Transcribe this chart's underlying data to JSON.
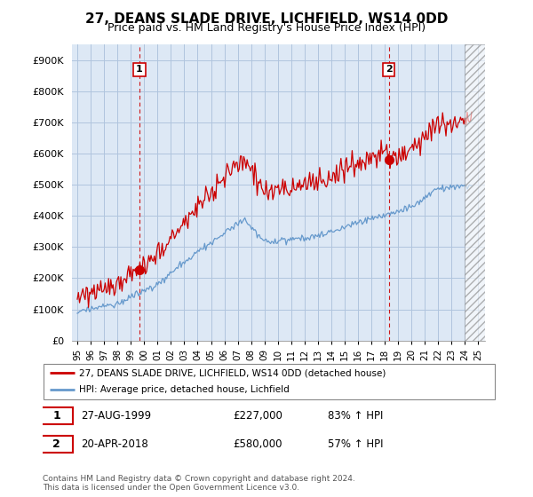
{
  "title": "27, DEANS SLADE DRIVE, LICHFIELD, WS14 0DD",
  "subtitle": "Price paid vs. HM Land Registry's House Price Index (HPI)",
  "property_label": "27, DEANS SLADE DRIVE, LICHFIELD, WS14 0DD (detached house)",
  "hpi_label": "HPI: Average price, detached house, Lichfield",
  "transaction1_label": "1",
  "transaction1_date": "27-AUG-1999",
  "transaction1_price": "£227,000",
  "transaction1_hpi": "83% ↑ HPI",
  "transaction2_label": "2",
  "transaction2_date": "20-APR-2018",
  "transaction2_price": "£580,000",
  "transaction2_hpi": "57% ↑ HPI",
  "footer": "Contains HM Land Registry data © Crown copyright and database right 2024.\nThis data is licensed under the Open Government Licence v3.0.",
  "ylim": [
    0,
    950000
  ],
  "yticks": [
    0,
    100000,
    200000,
    300000,
    400000,
    500000,
    600000,
    700000,
    800000,
    900000
  ],
  "property_color": "#cc0000",
  "hpi_color": "#6699cc",
  "bg_color": "#dde8f5",
  "grid_color": "#b0c4de",
  "transaction1_x": 1999.65,
  "transaction1_y": 227000,
  "transaction2_x": 2018.3,
  "transaction2_y": 580000,
  "xmin": 1995,
  "xmax": 2025,
  "hatch_start": 2024.0
}
